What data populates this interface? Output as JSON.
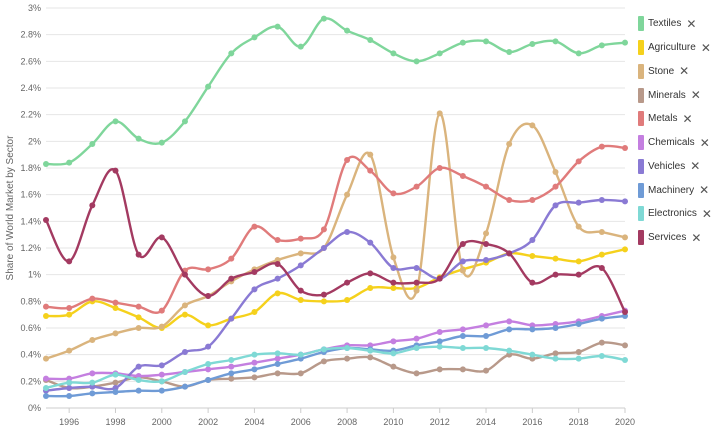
{
  "chart_data": {
    "type": "line",
    "ylabel": "Share of World Market by Sector",
    "xlim": [
      1995,
      2020
    ],
    "ylim": [
      0,
      3
    ],
    "x_ticks": [
      1996,
      1998,
      2000,
      2002,
      2004,
      2006,
      2008,
      2010,
      2012,
      2014,
      2016,
      2018,
      2020
    ],
    "y_ticks": [
      0,
      0.2,
      0.4,
      0.6,
      0.8,
      1,
      1.2,
      1.4,
      1.6,
      1.8,
      2,
      2.2,
      2.4,
      2.6,
      2.8,
      3
    ],
    "y_tick_labels": [
      "0%",
      "0.2%",
      "0.4%",
      "0.6%",
      "0.8%",
      "1%",
      "1.2%",
      "1.4%",
      "1.6%",
      "1.8%",
      "2%",
      "2.2%",
      "2.4%",
      "2.6%",
      "2.8%",
      "3%"
    ],
    "grid": true,
    "legend_position": "right",
    "x": [
      1995,
      1996,
      1997,
      1998,
      1999,
      2000,
      2001,
      2002,
      2003,
      2004,
      2005,
      2006,
      2007,
      2008,
      2009,
      2010,
      2011,
      2012,
      2013,
      2014,
      2015,
      2016,
      2017,
      2018,
      2019,
      2020
    ],
    "series": [
      {
        "name": "Textiles",
        "color": "#7fd69b",
        "values": [
          1.83,
          1.84,
          1.98,
          2.15,
          2.02,
          1.99,
          2.15,
          2.41,
          2.66,
          2.78,
          2.86,
          2.71,
          2.92,
          2.83,
          2.76,
          2.66,
          2.6,
          2.66,
          2.74,
          2.75,
          2.67,
          2.73,
          2.75,
          2.66,
          2.72,
          2.74
        ]
      },
      {
        "name": "Agriculture",
        "color": "#f5d11c",
        "values": [
          0.69,
          0.7,
          0.8,
          0.75,
          0.68,
          0.6,
          0.7,
          0.62,
          0.67,
          0.72,
          0.86,
          0.81,
          0.8,
          0.81,
          0.9,
          0.9,
          0.9,
          0.98,
          1.04,
          1.09,
          1.16,
          1.14,
          1.12,
          1.1,
          1.15,
          1.19
        ]
      },
      {
        "name": "Stone",
        "color": "#dab47d",
        "values": [
          0.37,
          0.43,
          0.51,
          0.56,
          0.6,
          0.61,
          0.77,
          0.84,
          0.95,
          1.04,
          1.11,
          1.16,
          1.2,
          1.6,
          1.9,
          1.13,
          0.88,
          2.21,
          1.03,
          1.31,
          1.98,
          2.12,
          1.77,
          1.36,
          1.32,
          1.28
        ]
      },
      {
        "name": "Minerals",
        "color": "#b8998a",
        "values": [
          0.21,
          0.15,
          0.16,
          0.19,
          0.23,
          0.2,
          0.16,
          0.21,
          0.22,
          0.23,
          0.26,
          0.26,
          0.35,
          0.37,
          0.38,
          0.31,
          0.26,
          0.29,
          0.29,
          0.28,
          0.4,
          0.37,
          0.41,
          0.42,
          0.49,
          0.47
        ]
      },
      {
        "name": "Metals",
        "color": "#e07b7b",
        "values": [
          0.76,
          0.75,
          0.82,
          0.79,
          0.76,
          0.73,
          1.03,
          1.04,
          1.12,
          1.36,
          1.26,
          1.27,
          1.34,
          1.86,
          1.78,
          1.61,
          1.66,
          1.8,
          1.74,
          1.66,
          1.56,
          1.56,
          1.66,
          1.85,
          1.96,
          1.95
        ]
      },
      {
        "name": "Chemicals",
        "color": "#c47fe0",
        "values": [
          0.22,
          0.22,
          0.26,
          0.26,
          0.24,
          0.25,
          0.27,
          0.29,
          0.31,
          0.34,
          0.37,
          0.4,
          0.44,
          0.47,
          0.47,
          0.5,
          0.52,
          0.57,
          0.59,
          0.62,
          0.65,
          0.62,
          0.63,
          0.65,
          0.69,
          0.73
        ]
      },
      {
        "name": "Vehicles",
        "color": "#8a7ad4",
        "values": [
          0.13,
          0.15,
          0.16,
          0.15,
          0.31,
          0.32,
          0.42,
          0.46,
          0.67,
          0.89,
          0.97,
          1.07,
          1.2,
          1.32,
          1.24,
          1.05,
          1.05,
          0.97,
          1.1,
          1.11,
          1.16,
          1.26,
          1.52,
          1.54,
          1.56,
          1.55
        ]
      },
      {
        "name": "Machinery",
        "color": "#6f9bd6",
        "values": [
          0.09,
          0.09,
          0.11,
          0.12,
          0.13,
          0.13,
          0.16,
          0.21,
          0.26,
          0.29,
          0.33,
          0.37,
          0.42,
          0.45,
          0.44,
          0.43,
          0.47,
          0.5,
          0.54,
          0.54,
          0.59,
          0.59,
          0.6,
          0.63,
          0.67,
          0.69
        ]
      },
      {
        "name": "Electronics",
        "color": "#7fd9d5",
        "values": [
          0.15,
          0.19,
          0.19,
          0.25,
          0.21,
          0.2,
          0.27,
          0.33,
          0.36,
          0.4,
          0.41,
          0.4,
          0.44,
          0.45,
          0.43,
          0.41,
          0.45,
          0.46,
          0.45,
          0.45,
          0.43,
          0.4,
          0.37,
          0.37,
          0.39,
          0.36
        ]
      },
      {
        "name": "Services",
        "color": "#a33a61",
        "values": [
          1.41,
          1.1,
          1.52,
          1.78,
          1.15,
          1.28,
          1.0,
          0.84,
          0.97,
          1.02,
          1.08,
          0.88,
          0.85,
          0.94,
          1.01,
          0.94,
          0.94,
          0.97,
          1.23,
          1.23,
          1.16,
          0.94,
          1.0,
          1.0,
          1.05,
          0.72
        ]
      }
    ]
  },
  "legend": {
    "close_glyph": "✕",
    "items": [
      {
        "label": "Textiles",
        "color": "#7fd69b"
      },
      {
        "label": "Agriculture",
        "color": "#f5d11c"
      },
      {
        "label": "Stone",
        "color": "#dab47d"
      },
      {
        "label": "Minerals",
        "color": "#b8998a"
      },
      {
        "label": "Metals",
        "color": "#e07b7b"
      },
      {
        "label": "Chemicals",
        "color": "#c47fe0"
      },
      {
        "label": "Vehicles",
        "color": "#8a7ad4"
      },
      {
        "label": "Machinery",
        "color": "#6f9bd6"
      },
      {
        "label": "Electronics",
        "color": "#7fd9d5"
      },
      {
        "label": "Services",
        "color": "#a33a61"
      }
    ]
  }
}
